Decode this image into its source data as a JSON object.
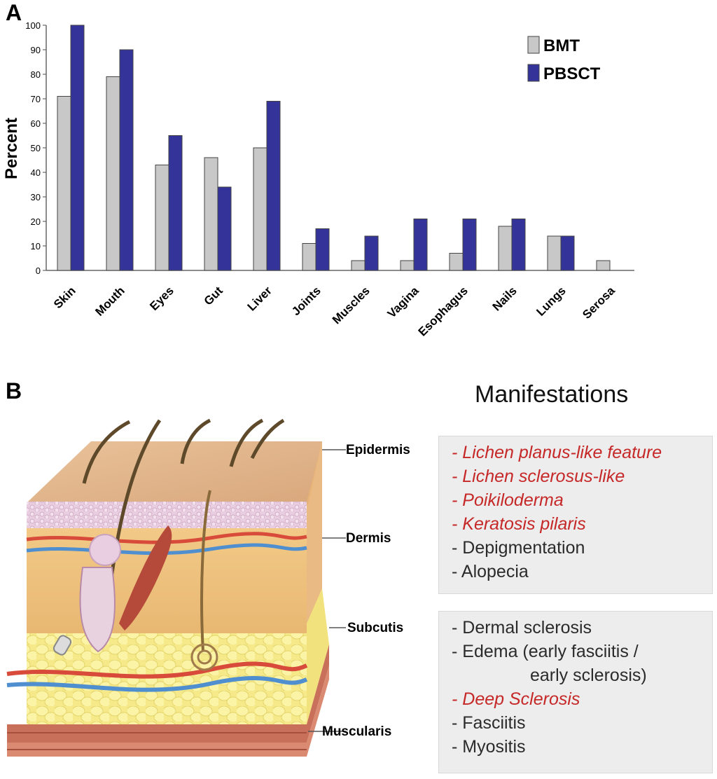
{
  "panel_a": {
    "label": "A"
  },
  "panel_b": {
    "label": "B"
  },
  "chart_data": {
    "type": "bar",
    "title": "",
    "xlabel": "",
    "ylabel": "Percent",
    "ylim": [
      0,
      100
    ],
    "yticks": [
      0,
      10,
      20,
      30,
      40,
      50,
      60,
      70,
      80,
      90,
      100
    ],
    "grid": false,
    "legend_position": "top-right",
    "categories": [
      "Skin",
      "Mouth",
      "Eyes",
      "Gut",
      "Liver",
      "Joints",
      "Muscles",
      "Vagina",
      "Esophagus",
      "Nails",
      "Lungs",
      "Serosa"
    ],
    "series": [
      {
        "name": "BMT",
        "color": "#c8c8c8",
        "values": [
          71,
          79,
          43,
          46,
          50,
          11,
          4,
          4,
          7,
          18,
          14,
          4
        ]
      },
      {
        "name": "PBSCT",
        "color": "#333399",
        "values": [
          100,
          90,
          55,
          34,
          69,
          17,
          14,
          21,
          21,
          21,
          14,
          0
        ]
      }
    ]
  },
  "manifestations": {
    "title": "Manifestations",
    "group1": [
      {
        "text": "- Lichen planus-like feature",
        "style": "red"
      },
      {
        "text": "- Lichen sclerosus-like",
        "style": "red"
      },
      {
        "text": "- Poikiloderma",
        "style": "red"
      },
      {
        "text": "- Keratosis pilaris",
        "style": "red"
      },
      {
        "text": "- Depigmentation",
        "style": "black"
      },
      {
        "text": "- Alopecia",
        "style": "black"
      }
    ],
    "group2": [
      {
        "text": "- Dermal sclerosis",
        "style": "black"
      },
      {
        "text": "- Edema (early fasciitis /",
        "style": "black"
      },
      {
        "text": "early sclerosis)",
        "style": "black-indent"
      },
      {
        "text": "- Deep Sclerosis",
        "style": "red"
      },
      {
        "text": "- Fasciitis",
        "style": "black"
      },
      {
        "text": "- Myositis",
        "style": "black"
      }
    ]
  },
  "skin_layers": {
    "epidermis": "Epidermis",
    "dermis": "Dermis",
    "subcutis": "Subcutis",
    "muscularis": "Muscularis"
  },
  "colors": {
    "red_text": "#c62828",
    "box_bg": "#ededed",
    "bmt": "#c8c8c8",
    "pbsct": "#333399"
  }
}
